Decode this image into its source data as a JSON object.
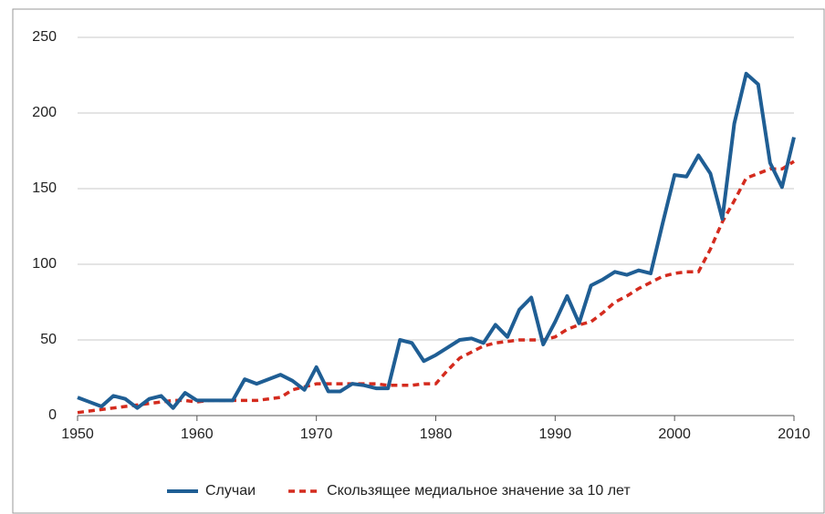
{
  "chart_data": {
    "type": "line",
    "x": [
      1950,
      1951,
      1952,
      1953,
      1954,
      1955,
      1956,
      1957,
      1958,
      1959,
      1960,
      1961,
      1962,
      1963,
      1964,
      1965,
      1966,
      1967,
      1968,
      1969,
      1970,
      1971,
      1972,
      1973,
      1974,
      1975,
      1976,
      1977,
      1978,
      1979,
      1980,
      1981,
      1982,
      1983,
      1984,
      1985,
      1986,
      1987,
      1988,
      1989,
      1990,
      1991,
      1992,
      1993,
      1994,
      1995,
      1996,
      1997,
      1998,
      1999,
      2000,
      2001,
      2002,
      2003,
      2004,
      2005,
      2006,
      2007,
      2008,
      2009,
      2010
    ],
    "series": [
      {
        "name": "Случаи",
        "color": "#1f5e94",
        "dash": false,
        "values": [
          12,
          9,
          6,
          13,
          11,
          5,
          11,
          13,
          5,
          15,
          10,
          10,
          10,
          10,
          24,
          21,
          24,
          27,
          23,
          17,
          32,
          16,
          16,
          21,
          20,
          18,
          18,
          50,
          48,
          36,
          40,
          45,
          50,
          51,
          48,
          60,
          52,
          70,
          78,
          47,
          62,
          79,
          61,
          86,
          90,
          95,
          93,
          96,
          94,
          127,
          159,
          158,
          172,
          160,
          130,
          193,
          226,
          219,
          167,
          151,
          184
        ]
      },
      {
        "name": "Скользящее медиальное значение за 10 лет",
        "color": "#d42b1e",
        "dash": true,
        "values": [
          2,
          3,
          4,
          5,
          6,
          7,
          8,
          9,
          10,
          10,
          9,
          10,
          10,
          10,
          10,
          10,
          11,
          12,
          17,
          19,
          21,
          21,
          21,
          21,
          21,
          21,
          20,
          20,
          20,
          21,
          21,
          30,
          38,
          42,
          46,
          48,
          49,
          50,
          50,
          50,
          52,
          57,
          60,
          62,
          68,
          75,
          79,
          84,
          88,
          92,
          94,
          95,
          95,
          110,
          128,
          142,
          157,
          160,
          163,
          163,
          168
        ]
      }
    ],
    "xlim": [
      1950,
      2010
    ],
    "xticks": [
      1950,
      1960,
      1970,
      1980,
      1990,
      2000,
      2010
    ],
    "ylim": [
      0,
      250
    ],
    "yticks": [
      0,
      50,
      100,
      150,
      200,
      250
    ],
    "grid": true,
    "legend": "bottom"
  }
}
